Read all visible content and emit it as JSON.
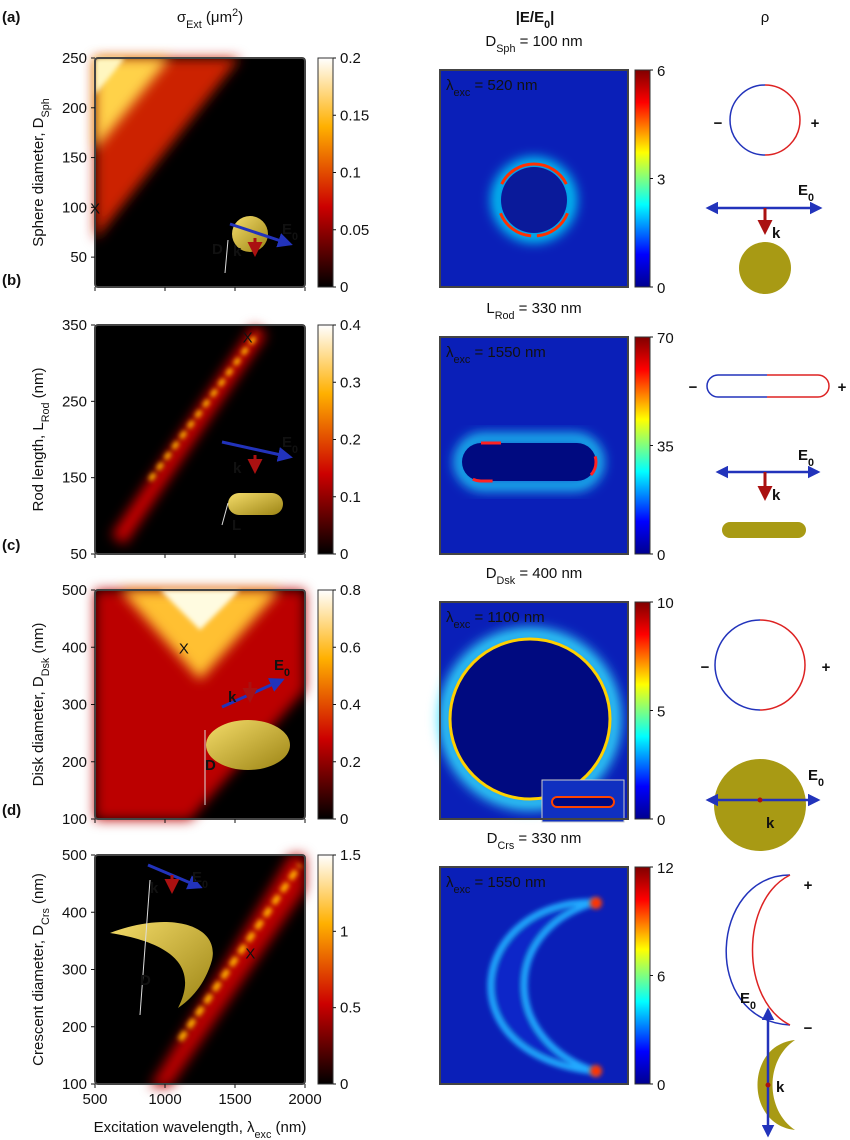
{
  "headers": {
    "extinction": [
      {
        "t": "σ"
      },
      {
        "t": "Ext",
        "sub": true
      },
      {
        "t": " (μm"
      },
      {
        "t": "2",
        "sup": true
      },
      {
        "t": ")"
      }
    ],
    "field": [
      {
        "t": "|E/E"
      },
      {
        "t": "0",
        "sub": true
      },
      {
        "t": "|"
      }
    ],
    "charge": "ρ"
  },
  "x_axis": {
    "label": [
      {
        "t": "Excitation wavelength, λ"
      },
      {
        "t": "exc",
        "sub": true
      },
      {
        "t": " (nm)"
      }
    ],
    "xlim": [
      500,
      2000
    ],
    "xticks": [
      500,
      1000,
      1500,
      2000
    ]
  },
  "panels": [
    {
      "tag": "(a)",
      "ylabel": [
        {
          "t": "Sphere diameter, D"
        },
        {
          "t": "Sph",
          "sub": true
        }
      ],
      "ylim": [
        20,
        250
      ],
      "yticks": [
        50,
        100,
        150,
        200,
        250
      ],
      "cbar_lim": [
        0,
        0.2
      ],
      "cbar_ticks": [
        0,
        0.05,
        0.1,
        0.15,
        0.2
      ],
      "marker": {
        "x": 500,
        "y": 100,
        "label": "X"
      },
      "size_label": "D",
      "efield": [
        {
          "t": "E"
        },
        {
          "t": "0",
          "sub": true
        }
      ],
      "k": "k",
      "field_title": [
        {
          "t": "D"
        },
        {
          "t": "Sph",
          "sub": true
        },
        {
          "t": " = 100 nm"
        }
      ],
      "exc": [
        {
          "t": "λ"
        },
        {
          "t": "exc",
          "sub": true
        },
        {
          "t": " = 520 nm"
        }
      ],
      "field_lim": [
        0,
        6
      ],
      "field_ticks": [
        0,
        3,
        6
      ],
      "charges": [
        "−",
        "+"
      ]
    },
    {
      "tag": "(b)",
      "ylabel": [
        {
          "t": "Rod length, L"
        },
        {
          "t": "Rod",
          "sub": true
        },
        {
          "t": " (nm)"
        }
      ],
      "ylim": [
        50,
        350
      ],
      "yticks": [
        50,
        150,
        250,
        350
      ],
      "cbar_lim": [
        0,
        0.4
      ],
      "cbar_ticks": [
        0,
        0.1,
        0.2,
        0.3,
        0.4
      ],
      "marker": {
        "x": 1590,
        "y": 335,
        "label": "X"
      },
      "size_label": "L",
      "efield": [
        {
          "t": "E"
        },
        {
          "t": "0",
          "sub": true
        }
      ],
      "k": "k",
      "field_title": [
        {
          "t": "L"
        },
        {
          "t": "Rod",
          "sub": true
        },
        {
          "t": " = 330 nm"
        }
      ],
      "exc": [
        {
          "t": "λ"
        },
        {
          "t": "exc",
          "sub": true
        },
        {
          "t": " = 1550 nm"
        }
      ],
      "field_lim": [
        0,
        70
      ],
      "field_ticks": [
        0,
        35,
        70
      ],
      "charges": [
        "−",
        "+"
      ]
    },
    {
      "tag": "(c)",
      "ylabel": [
        {
          "t": "Disk diameter, D"
        },
        {
          "t": "Dsk",
          "sub": true
        },
        {
          "t": " (nm)"
        }
      ],
      "ylim": [
        100,
        500
      ],
      "yticks": [
        100,
        200,
        300,
        400,
        500
      ],
      "cbar_lim": [
        0,
        0.8
      ],
      "cbar_ticks": [
        0,
        0.2,
        0.4,
        0.6,
        0.8
      ],
      "marker": {
        "x": 1135,
        "y": 400,
        "label": "X"
      },
      "size_label": "D",
      "efield": [
        {
          "t": "E"
        },
        {
          "t": "0",
          "sub": true
        }
      ],
      "k": "k",
      "field_title": [
        {
          "t": "D"
        },
        {
          "t": "Dsk",
          "sub": true
        },
        {
          "t": " = 400 nm"
        }
      ],
      "exc": [
        {
          "t": "λ"
        },
        {
          "t": "exc",
          "sub": true
        },
        {
          "t": " = 1100 nm"
        }
      ],
      "field_lim": [
        0,
        10
      ],
      "field_ticks": [
        0,
        5,
        10
      ],
      "charges": [
        "−",
        "+"
      ]
    },
    {
      "tag": "(d)",
      "ylabel": [
        {
          "t": "Crescent diameter, D"
        },
        {
          "t": "Crs",
          "sub": true
        },
        {
          "t": " (nm)"
        }
      ],
      "ylim": [
        100,
        500
      ],
      "yticks": [
        100,
        200,
        300,
        400,
        500
      ],
      "cbar_lim": [
        0,
        1.5
      ],
      "cbar_ticks": [
        0,
        0.5,
        1,
        1.5
      ],
      "marker": {
        "x": 1610,
        "y": 330,
        "label": "X"
      },
      "size_label": "D",
      "efield": [
        {
          "t": "E"
        },
        {
          "t": "0",
          "sub": true
        }
      ],
      "k": "k",
      "field_title": [
        {
          "t": "D"
        },
        {
          "t": "Crs",
          "sub": true
        },
        {
          "t": " = 330 nm"
        }
      ],
      "exc": [
        {
          "t": "λ"
        },
        {
          "t": "exc",
          "sub": true
        },
        {
          "t": " = 1550 nm"
        }
      ],
      "field_lim": [
        0,
        12
      ],
      "field_ticks": [
        0,
        6,
        12
      ],
      "charges": [
        "+",
        "−"
      ]
    }
  ]
}
